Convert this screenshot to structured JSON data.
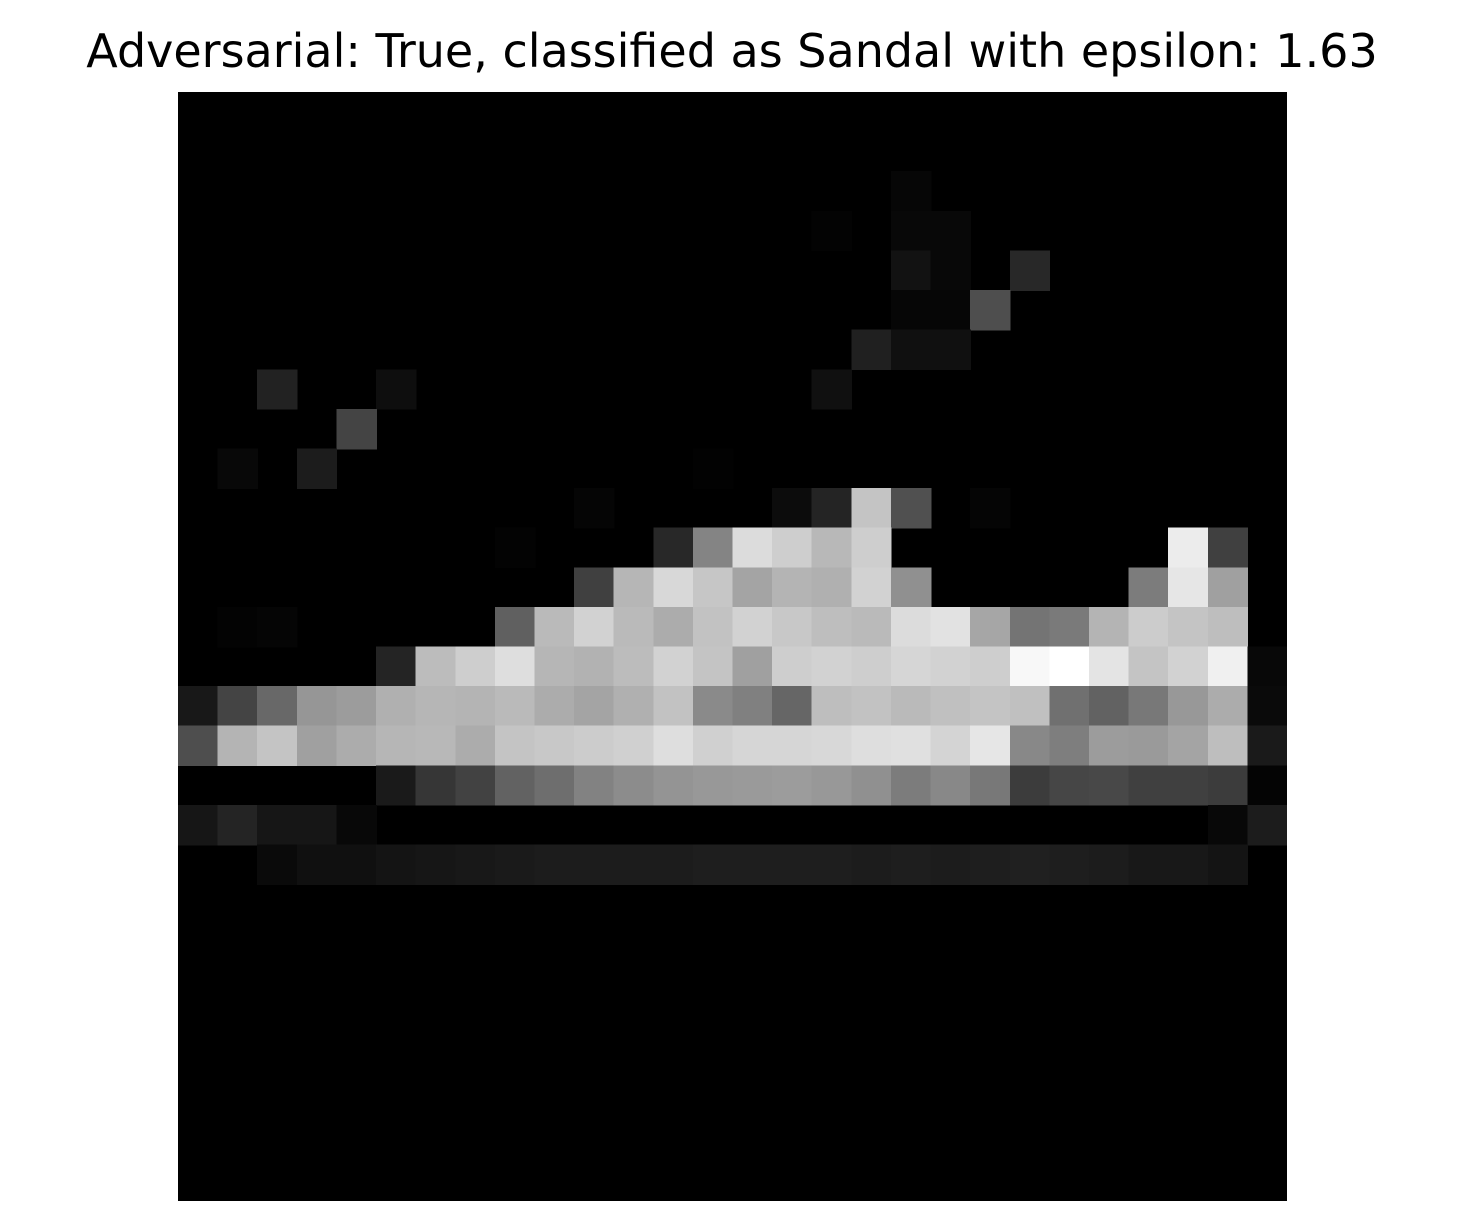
{
  "figure": {
    "title": "Adversarial: True, classified as Sandal with epsilon: 1.63"
  },
  "image": {
    "colormap": "gray",
    "rows": 28,
    "cols": 28,
    "pixels": [
      [
        0,
        0,
        0,
        0,
        0,
        0,
        0,
        0,
        0,
        0,
        0,
        0,
        0,
        0,
        0,
        0,
        0,
        0,
        0,
        0,
        0,
        0,
        0,
        0,
        0,
        0,
        0,
        0
      ],
      [
        0,
        0,
        0,
        0,
        0,
        0,
        0,
        0,
        0,
        0,
        0,
        0,
        0,
        0,
        0,
        0,
        0,
        0,
        0,
        0,
        0,
        0,
        0,
        0,
        0,
        0,
        0,
        0
      ],
      [
        0,
        0,
        0,
        0,
        0,
        0,
        0,
        0,
        0,
        0,
        0,
        0,
        0,
        0,
        0,
        0,
        0,
        0,
        6,
        0,
        0,
        0,
        0,
        0,
        0,
        0,
        0,
        0
      ],
      [
        0,
        0,
        0,
        0,
        0,
        0,
        0,
        0,
        0,
        0,
        0,
        0,
        0,
        0,
        0,
        0,
        3,
        0,
        8,
        8,
        0,
        0,
        0,
        0,
        0,
        0,
        0,
        0
      ],
      [
        0,
        0,
        0,
        0,
        0,
        0,
        0,
        0,
        0,
        0,
        0,
        0,
        0,
        0,
        0,
        0,
        0,
        0,
        18,
        8,
        0,
        40,
        0,
        0,
        0,
        0,
        0,
        0
      ],
      [
        0,
        0,
        0,
        0,
        0,
        0,
        0,
        0,
        0,
        0,
        0,
        0,
        0,
        0,
        0,
        0,
        0,
        0,
        6,
        6,
        78,
        0,
        0,
        0,
        0,
        0,
        0,
        0
      ],
      [
        0,
        0,
        0,
        0,
        0,
        0,
        0,
        0,
        0,
        0,
        0,
        0,
        0,
        0,
        0,
        0,
        0,
        32,
        16,
        16,
        0,
        0,
        0,
        0,
        0,
        0,
        0,
        0
      ],
      [
        0,
        0,
        34,
        0,
        0,
        14,
        0,
        0,
        0,
        0,
        0,
        0,
        0,
        0,
        0,
        0,
        16,
        0,
        0,
        0,
        0,
        0,
        0,
        0,
        0,
        0,
        0,
        0
      ],
      [
        0,
        0,
        0,
        0,
        68,
        0,
        0,
        0,
        0,
        0,
        0,
        0,
        0,
        0,
        0,
        0,
        0,
        0,
        0,
        0,
        0,
        0,
        0,
        0,
        0,
        0,
        0,
        0
      ],
      [
        0,
        8,
        0,
        28,
        0,
        0,
        0,
        0,
        0,
        0,
        0,
        0,
        0,
        2,
        0,
        0,
        0,
        0,
        0,
        0,
        0,
        0,
        0,
        0,
        0,
        0,
        0,
        0
      ],
      [
        0,
        0,
        0,
        0,
        0,
        0,
        0,
        0,
        0,
        0,
        5,
        0,
        0,
        0,
        0,
        12,
        36,
        196,
        80,
        0,
        5,
        0,
        0,
        0,
        0,
        0,
        0,
        0
      ],
      [
        0,
        0,
        0,
        0,
        0,
        0,
        0,
        0,
        3,
        0,
        0,
        0,
        40,
        132,
        220,
        206,
        184,
        206,
        0,
        0,
        0,
        0,
        0,
        0,
        0,
        236,
        64,
        0
      ],
      [
        0,
        0,
        0,
        0,
        0,
        0,
        0,
        0,
        0,
        0,
        64,
        182,
        216,
        198,
        164,
        180,
        176,
        210,
        144,
        0,
        0,
        0,
        0,
        0,
        124,
        230,
        160,
        0
      ],
      [
        0,
        3,
        5,
        0,
        0,
        0,
        0,
        0,
        96,
        186,
        210,
        186,
        172,
        194,
        210,
        200,
        190,
        186,
        220,
        226,
        166,
        116,
        122,
        180,
        204,
        196,
        190,
        0
      ],
      [
        0,
        0,
        0,
        0,
        0,
        36,
        188,
        206,
        222,
        182,
        178,
        188,
        210,
        196,
        160,
        206,
        210,
        206,
        214,
        210,
        206,
        248,
        255,
        228,
        196,
        210,
        240,
        8
      ],
      [
        24,
        68,
        104,
        150,
        156,
        176,
        182,
        180,
        186,
        172,
        164,
        176,
        194,
        138,
        128,
        102,
        190,
        194,
        186,
        192,
        196,
        192,
        112,
        98,
        120,
        152,
        172,
        10
      ],
      [
        78,
        180,
        196,
        160,
        172,
        182,
        184,
        172,
        196,
        200,
        204,
        208,
        222,
        208,
        214,
        214,
        216,
        222,
        224,
        212,
        230,
        136,
        126,
        156,
        154,
        164,
        190,
        26
      ],
      [
        0,
        0,
        0,
        0,
        0,
        26,
        54,
        66,
        98,
        110,
        130,
        140,
        148,
        152,
        154,
        156,
        152,
        144,
        124,
        136,
        120,
        60,
        70,
        72,
        64,
        64,
        60,
        4
      ],
      [
        22,
        36,
        22,
        22,
        8,
        0,
        0,
        0,
        0,
        0,
        0,
        0,
        0,
        0,
        0,
        0,
        0,
        0,
        0,
        0,
        0,
        0,
        0,
        0,
        0,
        0,
        8,
        28
      ],
      [
        0,
        0,
        10,
        16,
        16,
        20,
        22,
        24,
        26,
        28,
        28,
        28,
        28,
        30,
        30,
        30,
        30,
        28,
        30,
        28,
        30,
        32,
        30,
        28,
        24,
        24,
        20,
        0
      ],
      [
        0,
        0,
        0,
        0,
        0,
        0,
        0,
        0,
        0,
        0,
        0,
        0,
        0,
        0,
        0,
        0,
        0,
        0,
        0,
        0,
        0,
        0,
        0,
        0,
        0,
        0,
        0,
        0
      ],
      [
        0,
        0,
        0,
        0,
        0,
        0,
        0,
        0,
        0,
        0,
        0,
        0,
        0,
        0,
        0,
        0,
        0,
        0,
        0,
        0,
        0,
        0,
        0,
        0,
        0,
        0,
        0,
        0
      ],
      [
        0,
        0,
        0,
        0,
        0,
        0,
        0,
        0,
        0,
        0,
        0,
        0,
        0,
        0,
        0,
        0,
        0,
        0,
        0,
        0,
        0,
        0,
        0,
        0,
        0,
        0,
        0,
        0
      ],
      [
        0,
        0,
        0,
        0,
        0,
        0,
        0,
        0,
        0,
        0,
        0,
        0,
        0,
        0,
        0,
        0,
        0,
        0,
        0,
        0,
        0,
        0,
        0,
        0,
        0,
        0,
        0,
        0
      ],
      [
        0,
        0,
        0,
        0,
        0,
        0,
        0,
        0,
        0,
        0,
        0,
        0,
        0,
        0,
        0,
        0,
        0,
        0,
        0,
        0,
        0,
        0,
        0,
        0,
        0,
        0,
        0,
        0
      ],
      [
        0,
        0,
        0,
        0,
        0,
        0,
        0,
        0,
        0,
        0,
        0,
        0,
        0,
        0,
        0,
        0,
        0,
        0,
        0,
        0,
        0,
        0,
        0,
        0,
        0,
        0,
        0,
        0
      ],
      [
        0,
        0,
        0,
        0,
        0,
        0,
        0,
        0,
        0,
        0,
        0,
        0,
        0,
        0,
        0,
        0,
        0,
        0,
        0,
        0,
        0,
        0,
        0,
        0,
        0,
        0,
        0,
        0
      ],
      [
        0,
        0,
        0,
        0,
        0,
        0,
        0,
        0,
        0,
        0,
        0,
        0,
        0,
        0,
        0,
        0,
        0,
        0,
        0,
        0,
        0,
        0,
        0,
        0,
        0,
        0,
        0,
        0
      ]
    ]
  }
}
